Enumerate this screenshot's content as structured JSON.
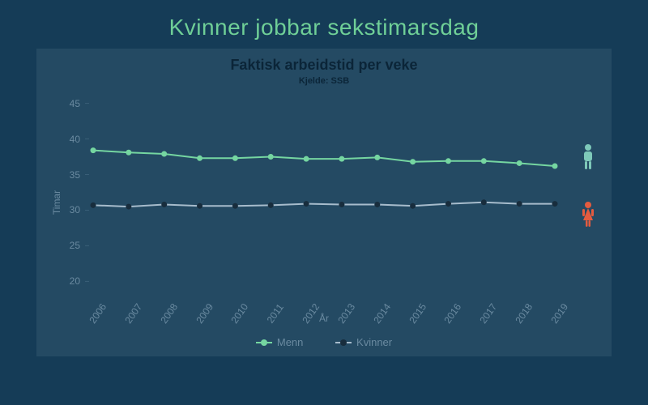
{
  "page": {
    "title": "Kvinner jobbar sekstimarsdag",
    "title_color": "#6fcf97",
    "title_fontsize": 28,
    "background_color": "#153c57"
  },
  "chart": {
    "type": "line",
    "panel_background": "#244a63",
    "title": "Faktisk arbeidstid per veke",
    "subtitle": "Kjelde: SSB",
    "title_color": "#0b2538",
    "title_fontsize": 18,
    "subtitle_fontsize": 11,
    "xlabel": "År",
    "ylabel": "Timar",
    "axis_label_color": "#6a8aa0",
    "axis_label_fontsize": 12,
    "tick_label_color": "#6a8aa0",
    "tick_fontsize": 12,
    "ylim": [
      18,
      47
    ],
    "yticks": [
      20,
      25,
      30,
      35,
      40,
      45
    ],
    "categories": [
      "2006",
      "2007",
      "2008",
      "2009",
      "2010",
      "2011",
      "2012",
      "2013",
      "2014",
      "2015",
      "2016",
      "2017",
      "2018",
      "2019"
    ],
    "xtick_rotation": -55,
    "grid_color": "#3a5f78",
    "series": [
      {
        "name": "Menn",
        "color": "#75d6a1",
        "marker_color": "#75d6a1",
        "marker_size": 7,
        "line_width": 2,
        "values": [
          38.4,
          38.1,
          37.9,
          37.3,
          37.3,
          37.5,
          37.2,
          37.2,
          37.4,
          36.8,
          36.9,
          36.9,
          36.6,
          36.2
        ],
        "icon": "male",
        "icon_color": "#7ec9b9"
      },
      {
        "name": "Kvinner",
        "color": "#a7bccc",
        "marker_color": "#182d3d",
        "marker_size": 7,
        "line_width": 2,
        "values": [
          30.7,
          30.5,
          30.8,
          30.6,
          30.6,
          30.7,
          30.9,
          30.8,
          30.8,
          30.6,
          30.9,
          31.1,
          30.9,
          30.9
        ],
        "icon": "female",
        "icon_color": "#e35b3f"
      }
    ],
    "legend": {
      "position": "bottom",
      "items": [
        "Menn",
        "Kvinner"
      ],
      "text_color": "#6a8aa0",
      "fontsize": 13
    }
  }
}
